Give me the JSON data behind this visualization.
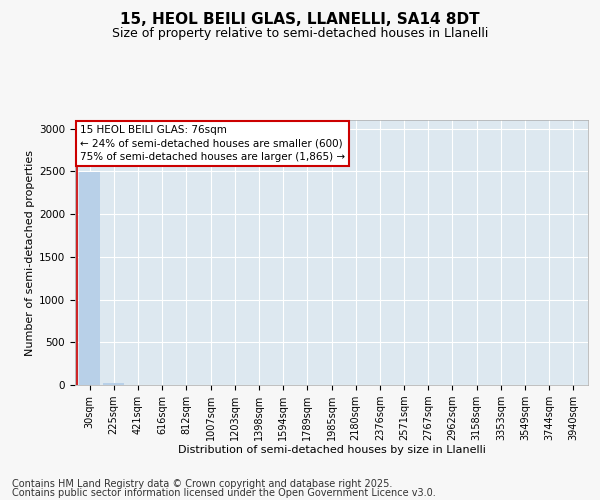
{
  "title1": "15, HEOL BEILI GLAS, LLANELLI, SA14 8DT",
  "title2": "Size of property relative to semi-detached houses in Llanelli",
  "xlabel": "Distribution of semi-detached houses by size in Llanelli",
  "ylabel": "Number of semi-detached properties",
  "categories": [
    "30sqm",
    "225sqm",
    "421sqm",
    "616sqm",
    "812sqm",
    "1007sqm",
    "1203sqm",
    "1398sqm",
    "1594sqm",
    "1789sqm",
    "1985sqm",
    "2180sqm",
    "2376sqm",
    "2571sqm",
    "2767sqm",
    "2962sqm",
    "3158sqm",
    "3353sqm",
    "3549sqm",
    "3744sqm",
    "3940sqm"
  ],
  "values": [
    2490,
    28,
    0,
    0,
    0,
    0,
    0,
    0,
    0,
    0,
    0,
    0,
    0,
    0,
    0,
    0,
    0,
    0,
    0,
    0,
    0
  ],
  "bar_color": "#b8d0e8",
  "annotation_line1": "15 HEOL BEILI GLAS: 76sqm",
  "annotation_line2": "← 24% of semi-detached houses are smaller (600)",
  "annotation_line3": "75% of semi-detached houses are larger (1,865) →",
  "annotation_box_edgecolor": "#cc0000",
  "property_line_color": "#cc0000",
  "ylim": [
    0,
    3100
  ],
  "yticks": [
    0,
    500,
    1000,
    1500,
    2000,
    2500,
    3000
  ],
  "footer1": "Contains HM Land Registry data © Crown copyright and database right 2025.",
  "footer2": "Contains public sector information licensed under the Open Government Licence v3.0.",
  "bg_color": "#f7f7f7",
  "plot_bg_color": "#dde8f0",
  "grid_color": "#ffffff",
  "title_fontsize": 11,
  "subtitle_fontsize": 9,
  "axis_label_fontsize": 8,
  "tick_fontsize": 7,
  "footer_fontsize": 7,
  "annotation_fontsize": 7.5
}
